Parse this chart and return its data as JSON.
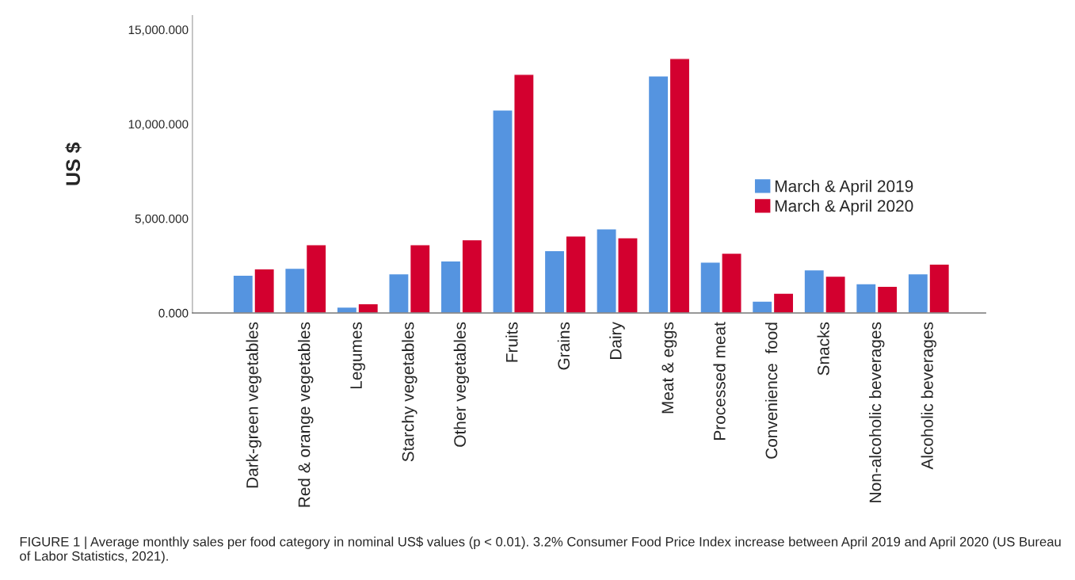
{
  "chart_data": {
    "type": "bar",
    "categories": [
      "Dark-green vegetables",
      "Red & orange vegetables",
      "Legumes",
      "Starchy vegetables",
      "Other vegetables",
      "Fruits",
      "Grains",
      "Dairy",
      "Meat & eggs",
      "Processed meat",
      "Convenience  food",
      "Snacks",
      "Non-alcoholic beverages",
      "Alcoholic beverages"
    ],
    "series": [
      {
        "name": "March & April 2019",
        "color": "#5594e0",
        "values": [
          2000,
          2370,
          310,
          2070,
          2760,
          10740,
          3300,
          4450,
          12550,
          2690,
          630,
          2280,
          1550,
          2070
        ]
      },
      {
        "name": "March & April 2020",
        "color": "#d3002f",
        "values": [
          2340,
          3610,
          490,
          3610,
          3880,
          12630,
          4080,
          3980,
          13470,
          3160,
          1050,
          1950,
          1410,
          2590
        ]
      }
    ],
    "ylabel": "US $",
    "ylim": [
      0,
      15750
    ],
    "yticks": [
      {
        "value": 0,
        "label": "0.000"
      },
      {
        "value": 5000,
        "label": "5,000.000"
      },
      {
        "value": 10000,
        "label": "10,000.000"
      },
      {
        "value": 15000,
        "label": "15,000.000"
      }
    ],
    "grid": false,
    "legend": "right",
    "annotations": [
      "FIGURE 1 | Average monthly sales per food category in nominal US$ values (p < 0.01). 3.2% Consumer Food Price Index increase between April 2019 and April 2020 (US Bureau of Labor Statistics, 2021)."
    ]
  }
}
